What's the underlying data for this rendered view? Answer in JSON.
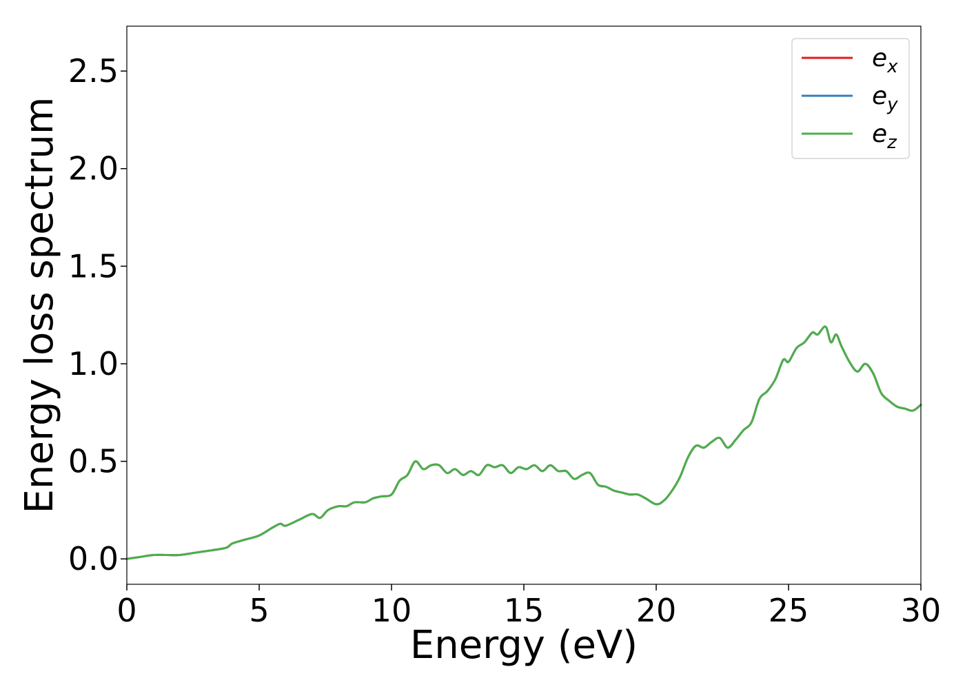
{
  "chart_data": {
    "type": "line",
    "title": "",
    "xlabel": "Energy (eV)",
    "ylabel": "Energy loss spectrum",
    "xlim": [
      0,
      30
    ],
    "ylim": [
      -0.13,
      2.73
    ],
    "xticks": [
      0,
      5,
      10,
      15,
      20,
      25,
      30
    ],
    "xtick_labels": [
      "0",
      "5",
      "10",
      "15",
      "20",
      "25",
      "30"
    ],
    "yticks": [
      0.0,
      0.5,
      1.0,
      1.5,
      2.0,
      2.5
    ],
    "ytick_labels": [
      "0.0",
      "0.5",
      "1.0",
      "1.5",
      "2.0",
      "2.5"
    ],
    "grid": false,
    "legend_position": "top-right",
    "x": [
      0,
      0.5,
      1,
      1.5,
      2,
      2.5,
      3,
      3.5,
      3.8,
      4,
      4.5,
      5,
      5.5,
      5.8,
      6,
      6.5,
      7,
      7.3,
      7.6,
      8,
      8.3,
      8.6,
      9,
      9.3,
      9.6,
      10,
      10.3,
      10.6,
      10.9,
      11.2,
      11.5,
      11.8,
      12.1,
      12.4,
      12.7,
      13,
      13.3,
      13.6,
      13.9,
      14.2,
      14.5,
      14.8,
      15.1,
      15.4,
      15.7,
      16,
      16.3,
      16.6,
      16.9,
      17.2,
      17.5,
      17.8,
      18.1,
      18.4,
      18.7,
      19,
      19.3,
      19.6,
      20,
      20.3,
      20.6,
      20.9,
      21.2,
      21.5,
      21.8,
      22.1,
      22.4,
      22.7,
      23,
      23.3,
      23.6,
      23.9,
      24.2,
      24.5,
      24.8,
      25,
      25.3,
      25.6,
      25.9,
      26.1,
      26.4,
      26.6,
      26.8,
      27,
      27.3,
      27.6,
      27.9,
      28.2,
      28.5,
      28.8,
      29.1,
      29.4,
      29.7,
      30
    ],
    "series": [
      {
        "name": "e_x",
        "color": "#e41a1c",
        "values": [
          0.0,
          0.01,
          0.02,
          0.02,
          0.02,
          0.03,
          0.04,
          0.05,
          0.06,
          0.08,
          0.1,
          0.12,
          0.16,
          0.18,
          0.17,
          0.2,
          0.23,
          0.21,
          0.25,
          0.27,
          0.27,
          0.29,
          0.29,
          0.31,
          0.32,
          0.33,
          0.4,
          0.43,
          0.5,
          0.46,
          0.48,
          0.48,
          0.44,
          0.46,
          0.43,
          0.45,
          0.43,
          0.48,
          0.47,
          0.48,
          0.44,
          0.47,
          0.46,
          0.48,
          0.45,
          0.48,
          0.45,
          0.45,
          0.41,
          0.43,
          0.44,
          0.38,
          0.37,
          0.35,
          0.34,
          0.33,
          0.33,
          0.31,
          0.28,
          0.3,
          0.35,
          0.42,
          0.52,
          0.58,
          0.57,
          0.6,
          0.62,
          0.57,
          0.61,
          0.66,
          0.7,
          0.82,
          0.86,
          0.92,
          1.02,
          1.01,
          1.08,
          1.11,
          1.16,
          1.15,
          1.19,
          1.11,
          1.15,
          1.09,
          1.01,
          0.96,
          1.0,
          0.95,
          0.85,
          0.81,
          0.78,
          0.77,
          0.76,
          0.79
        ]
      },
      {
        "name": "e_y",
        "color": "#377eb8",
        "values": [
          0.0,
          0.01,
          0.02,
          0.02,
          0.02,
          0.03,
          0.04,
          0.05,
          0.06,
          0.08,
          0.1,
          0.12,
          0.16,
          0.18,
          0.17,
          0.2,
          0.23,
          0.21,
          0.25,
          0.27,
          0.27,
          0.29,
          0.29,
          0.31,
          0.32,
          0.33,
          0.4,
          0.43,
          0.5,
          0.46,
          0.48,
          0.48,
          0.44,
          0.46,
          0.43,
          0.45,
          0.43,
          0.48,
          0.47,
          0.48,
          0.44,
          0.47,
          0.46,
          0.48,
          0.45,
          0.48,
          0.45,
          0.45,
          0.41,
          0.43,
          0.44,
          0.38,
          0.37,
          0.35,
          0.34,
          0.33,
          0.33,
          0.31,
          0.28,
          0.3,
          0.35,
          0.42,
          0.52,
          0.58,
          0.57,
          0.6,
          0.62,
          0.57,
          0.61,
          0.66,
          0.7,
          0.82,
          0.86,
          0.92,
          1.02,
          1.01,
          1.08,
          1.11,
          1.16,
          1.15,
          1.19,
          1.11,
          1.15,
          1.09,
          1.01,
          0.96,
          1.0,
          0.95,
          0.85,
          0.81,
          0.78,
          0.77,
          0.76,
          0.79
        ]
      },
      {
        "name": "e_z",
        "color": "#4daf4a",
        "values": [
          0.0,
          0.01,
          0.02,
          0.02,
          0.02,
          0.03,
          0.04,
          0.05,
          0.06,
          0.08,
          0.1,
          0.12,
          0.16,
          0.18,
          0.17,
          0.2,
          0.23,
          0.21,
          0.25,
          0.27,
          0.27,
          0.29,
          0.29,
          0.31,
          0.32,
          0.33,
          0.4,
          0.43,
          0.5,
          0.46,
          0.48,
          0.48,
          0.44,
          0.46,
          0.43,
          0.45,
          0.43,
          0.48,
          0.47,
          0.48,
          0.44,
          0.47,
          0.46,
          0.48,
          0.45,
          0.48,
          0.45,
          0.45,
          0.41,
          0.43,
          0.44,
          0.38,
          0.37,
          0.35,
          0.34,
          0.33,
          0.33,
          0.31,
          0.28,
          0.3,
          0.35,
          0.42,
          0.52,
          0.58,
          0.57,
          0.6,
          0.62,
          0.57,
          0.61,
          0.66,
          0.7,
          0.82,
          0.86,
          0.92,
          1.02,
          1.01,
          1.08,
          1.11,
          1.16,
          1.15,
          1.19,
          1.11,
          1.15,
          1.09,
          1.01,
          0.96,
          1.0,
          0.95,
          0.85,
          0.81,
          0.78,
          0.77,
          0.76,
          0.79
        ]
      }
    ],
    "legend": [
      {
        "base": "e",
        "sub": "x",
        "color": "#e41a1c"
      },
      {
        "base": "e",
        "sub": "y",
        "color": "#377eb8"
      },
      {
        "base": "e",
        "sub": "z",
        "color": "#4daf4a"
      }
    ]
  }
}
